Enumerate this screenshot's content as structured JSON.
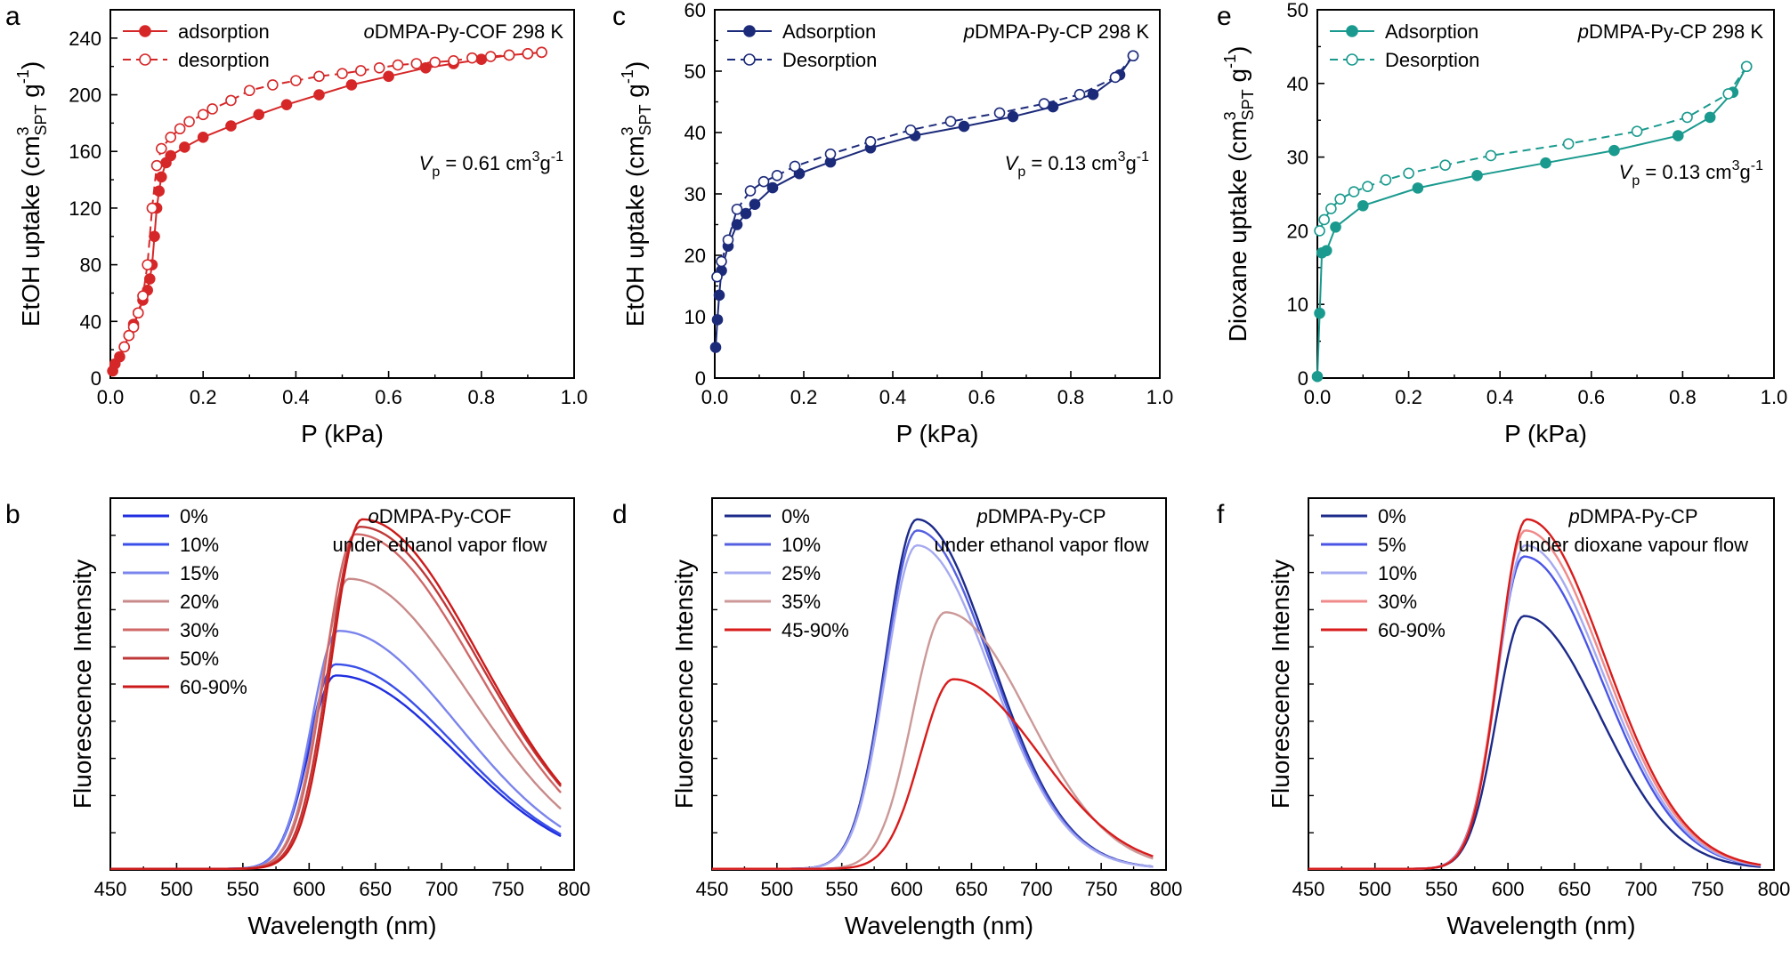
{
  "colors": {
    "axis": "#000000",
    "red": "#d62728",
    "blue": "#1c2a7a",
    "teal": "#1a9a8e",
    "purple": "#9090c8"
  },
  "chart_data": [
    {
      "panel": "a",
      "type": "line",
      "title": "oDMPA-Py-COF 298 K",
      "title_prefix": "o",
      "title_rest": "DMPA-Py-COF",
      "title_temp": "298 K",
      "xlabel": "P (kPa)",
      "ylabel": "EtOH uptake (cm3SPT g-1)",
      "xlim": [
        0,
        1.0
      ],
      "ylim": [
        0,
        260
      ],
      "xticks": [
        "0.0",
        "0.2",
        "0.4",
        "0.6",
        "0.8",
        "1.0"
      ],
      "yticks": [
        "0",
        "40",
        "80",
        "120",
        "160",
        "200",
        "240"
      ],
      "annotation": "Vp = 0.61 cm3g-1",
      "legend_position": "top-left",
      "series": [
        {
          "name": "adsorption",
          "color": "#d62728",
          "marker": "filled-circle",
          "line": "solid",
          "x": [
            0.005,
            0.01,
            0.02,
            0.03,
            0.04,
            0.05,
            0.06,
            0.07,
            0.08,
            0.085,
            0.09,
            0.095,
            0.1,
            0.105,
            0.11,
            0.12,
            0.13,
            0.16,
            0.2,
            0.26,
            0.32,
            0.38,
            0.45,
            0.52,
            0.6,
            0.68,
            0.74,
            0.8,
            0.86,
            0.9,
            0.93
          ],
          "y": [
            5,
            10,
            15,
            22,
            30,
            38,
            46,
            55,
            62,
            70,
            80,
            100,
            120,
            132,
            142,
            152,
            157,
            163,
            170,
            178,
            186,
            193,
            200,
            207,
            213,
            219,
            222,
            225,
            228,
            229,
            230
          ]
        },
        {
          "name": "desorption",
          "color": "#d62728",
          "marker": "open-circle",
          "line": "dashed",
          "x": [
            0.93,
            0.9,
            0.86,
            0.82,
            0.78,
            0.74,
            0.7,
            0.66,
            0.62,
            0.58,
            0.54,
            0.5,
            0.45,
            0.4,
            0.35,
            0.3,
            0.26,
            0.22,
            0.2,
            0.17,
            0.15,
            0.13,
            0.11,
            0.1,
            0.09,
            0.08,
            0.07,
            0.06,
            0.05,
            0.04,
            0.03
          ],
          "y": [
            230,
            229,
            228,
            227,
            226,
            224,
            223,
            222,
            221,
            219,
            217,
            215,
            213,
            210,
            207,
            203,
            196,
            190,
            186,
            181,
            176,
            170,
            162,
            150,
            120,
            80,
            58,
            46,
            36,
            30,
            22
          ]
        }
      ]
    },
    {
      "panel": "c",
      "type": "line",
      "title": "pDMPA-Py-CP 298 K",
      "title_prefix": "p",
      "title_rest": "DMPA-Py-CP",
      "title_temp": "298 K",
      "xlabel": "P (kPa)",
      "ylabel": "EtOH uptake (cm3SPT g-1)",
      "xlim": [
        0,
        1.0
      ],
      "ylim": [
        0,
        60
      ],
      "xticks": [
        "0.0",
        "0.2",
        "0.4",
        "0.6",
        "0.8",
        "1.0"
      ],
      "yticks": [
        "0",
        "10",
        "20",
        "30",
        "40",
        "50",
        "60"
      ],
      "annotation": "Vp = 0.13 cm3g-1",
      "legend_position": "top-left",
      "series": [
        {
          "name": "Adsorption",
          "color": "#1c2a7a",
          "marker": "filled-circle",
          "line": "solid",
          "x": [
            0.002,
            0.006,
            0.01,
            0.015,
            0.03,
            0.05,
            0.07,
            0.09,
            0.13,
            0.19,
            0.26,
            0.35,
            0.45,
            0.56,
            0.67,
            0.76,
            0.85,
            0.91,
            0.94
          ],
          "y": [
            5,
            9.5,
            13.5,
            17.5,
            21.5,
            25,
            26.8,
            28.3,
            31,
            33.3,
            35.2,
            37.5,
            39.5,
            41,
            42.6,
            44.2,
            46.2,
            49.4,
            52.5
          ]
        },
        {
          "name": "Desorption",
          "color": "#1c2a7a",
          "marker": "open-circle",
          "line": "dashed",
          "x": [
            0.94,
            0.9,
            0.82,
            0.74,
            0.64,
            0.53,
            0.44,
            0.35,
            0.26,
            0.18,
            0.14,
            0.11,
            0.08,
            0.05,
            0.03,
            0.015,
            0.005
          ],
          "y": [
            52.5,
            49,
            46.2,
            44.7,
            43.2,
            41.8,
            40.4,
            38.5,
            36.5,
            34.5,
            33,
            32,
            30.5,
            27.5,
            22.5,
            19,
            16.5
          ]
        }
      ]
    },
    {
      "panel": "e",
      "type": "line",
      "title": "pDMPA-Py-CP 298 K",
      "title_prefix": "p",
      "title_rest": "DMPA-Py-CP",
      "title_temp": "298 K",
      "xlabel": "P (kPa)",
      "ylabel": "Dioxane uptake (cm3SPT g-1)",
      "xlim": [
        0,
        1.0
      ],
      "ylim": [
        0,
        50
      ],
      "xticks": [
        "0.0",
        "0.2",
        "0.4",
        "0.6",
        "0.8",
        "1.0"
      ],
      "yticks": [
        "0",
        "10",
        "20",
        "30",
        "40",
        "50"
      ],
      "annotation": "Vp = 0.13 cm3g-1",
      "legend_position": "top-left",
      "series": [
        {
          "name": "Adsorption",
          "color": "#1a9a8e",
          "marker": "filled-circle",
          "line": "solid",
          "x": [
            0.0,
            0.005,
            0.01,
            0.02,
            0.04,
            0.1,
            0.22,
            0.35,
            0.5,
            0.65,
            0.79,
            0.86,
            0.91,
            0.94
          ],
          "y": [
            0.2,
            8.8,
            17,
            17.3,
            20.5,
            23.4,
            25.8,
            27.5,
            29.2,
            30.9,
            32.9,
            35.4,
            38.8,
            42.3
          ]
        },
        {
          "name": "Desorption",
          "color": "#1a9a8e",
          "marker": "open-circle",
          "line": "dashed",
          "x": [
            0.94,
            0.9,
            0.81,
            0.7,
            0.55,
            0.38,
            0.28,
            0.2,
            0.15,
            0.11,
            0.08,
            0.05,
            0.03,
            0.015,
            0.005
          ],
          "y": [
            42.3,
            38.6,
            35.4,
            33.5,
            31.8,
            30.2,
            28.9,
            27.8,
            26.9,
            26,
            25.3,
            24.3,
            23,
            21.5,
            20
          ]
        }
      ]
    },
    {
      "panel": "b",
      "type": "line",
      "title_prefix": "o",
      "title_rest": "DMPA-Py-COF",
      "title_line2": "under ethanol vapor flow",
      "xlabel": "Wavelength (nm)",
      "ylabel": "Fluorescence Intensity",
      "xlim": [
        450,
        800
      ],
      "ylim": [
        0,
        100
      ],
      "xticks": [
        "450",
        "500",
        "550",
        "600",
        "650",
        "700",
        "750",
        "800"
      ],
      "legend_position": "top-left",
      "curve_end": 790,
      "series": [
        {
          "name": "0%",
          "color": "#1f2ee0",
          "peak": 620,
          "amp": 52,
          "wl": 34,
          "wr": 150,
          "onset": 0.9
        },
        {
          "name": "10%",
          "color": "#3a4fe8",
          "peak": 620,
          "amp": 55,
          "wl": 34,
          "wr": 150,
          "onset": 0.9
        },
        {
          "name": "15%",
          "color": "#7a84ec",
          "peak": 622,
          "amp": 64,
          "wl": 34,
          "wr": 150,
          "onset": 0.9
        },
        {
          "name": "20%",
          "color": "#c98a8a",
          "peak": 630,
          "amp": 78,
          "wl": 36,
          "wr": 150,
          "onset": 0.95
        },
        {
          "name": "30%",
          "color": "#d06868",
          "peak": 635,
          "amp": 90,
          "wl": 38,
          "wr": 150,
          "onset": 1
        },
        {
          "name": "50%",
          "color": "#c03838",
          "peak": 638,
          "amp": 92,
          "wl": 38,
          "wr": 150,
          "onset": 1
        },
        {
          "name": "60-90%",
          "color": "#cc1a1a",
          "peak": 640,
          "amp": 94,
          "wl": 38,
          "wr": 148,
          "onset": 1
        }
      ]
    },
    {
      "panel": "d",
      "type": "line",
      "title_prefix": "p",
      "title_rest": "DMPA-Py-CP",
      "title_line2": "under ethanol vapor flow",
      "xlabel": "Wavelength (nm)",
      "ylabel": "Fluorescence Intensity",
      "xlim": [
        450,
        800
      ],
      "ylim": [
        0,
        100
      ],
      "xticks": [
        "450",
        "500",
        "550",
        "600",
        "650",
        "700",
        "750",
        "800"
      ],
      "legend_position": "top-left",
      "curve_end": 790,
      "series": [
        {
          "name": "0%",
          "color": "#1c2a8a",
          "peak": 608,
          "amp": 94,
          "wl": 40,
          "wr": 95,
          "onset": 1
        },
        {
          "name": "10%",
          "color": "#5560e0",
          "peak": 608,
          "amp": 91,
          "wl": 40,
          "wr": 95,
          "onset": 1
        },
        {
          "name": "25%",
          "color": "#a6aaf0",
          "peak": 608,
          "amp": 87,
          "wl": 40,
          "wr": 95,
          "onset": 1
        },
        {
          "name": "35%",
          "color": "#cc9898",
          "peak": 630,
          "amp": 69,
          "wl": 42,
          "wr": 105,
          "onset": 1
        },
        {
          "name": "45-90%",
          "color": "#d81c1c",
          "peak": 636,
          "amp": 51,
          "wl": 42,
          "wr": 110,
          "onset": 1
        }
      ]
    },
    {
      "panel": "f",
      "type": "line",
      "title_prefix": "p",
      "title_rest": "DMPA-Py-CP",
      "title_line2": "under dioxane vapour flow",
      "xlabel": "Wavelength (nm)",
      "ylabel": "Fluorescence Intensity",
      "xlim": [
        450,
        800
      ],
      "ylim": [
        0,
        100
      ],
      "xticks": [
        "450",
        "500",
        "550",
        "600",
        "650",
        "700",
        "750",
        "800"
      ],
      "legend_position": "top-left",
      "curve_end": 790,
      "series": [
        {
          "name": "0%",
          "color": "#1c2a8a",
          "peak": 612,
          "amp": 68,
          "wl": 34,
          "wr": 95,
          "onset": 1
        },
        {
          "name": "5%",
          "color": "#4a55e6",
          "peak": 612,
          "amp": 84,
          "wl": 34,
          "wr": 97,
          "onset": 1
        },
        {
          "name": "10%",
          "color": "#a6aaf0",
          "peak": 613,
          "amp": 87,
          "wl": 34,
          "wr": 97,
          "onset": 1
        },
        {
          "name": "30%",
          "color": "#f08a8a",
          "peak": 613,
          "amp": 91,
          "wl": 34,
          "wr": 98,
          "onset": 1
        },
        {
          "name": "60-90%",
          "color": "#d81c1c",
          "peak": 614,
          "amp": 94,
          "wl": 34,
          "wr": 98,
          "onset": 1
        }
      ]
    }
  ]
}
